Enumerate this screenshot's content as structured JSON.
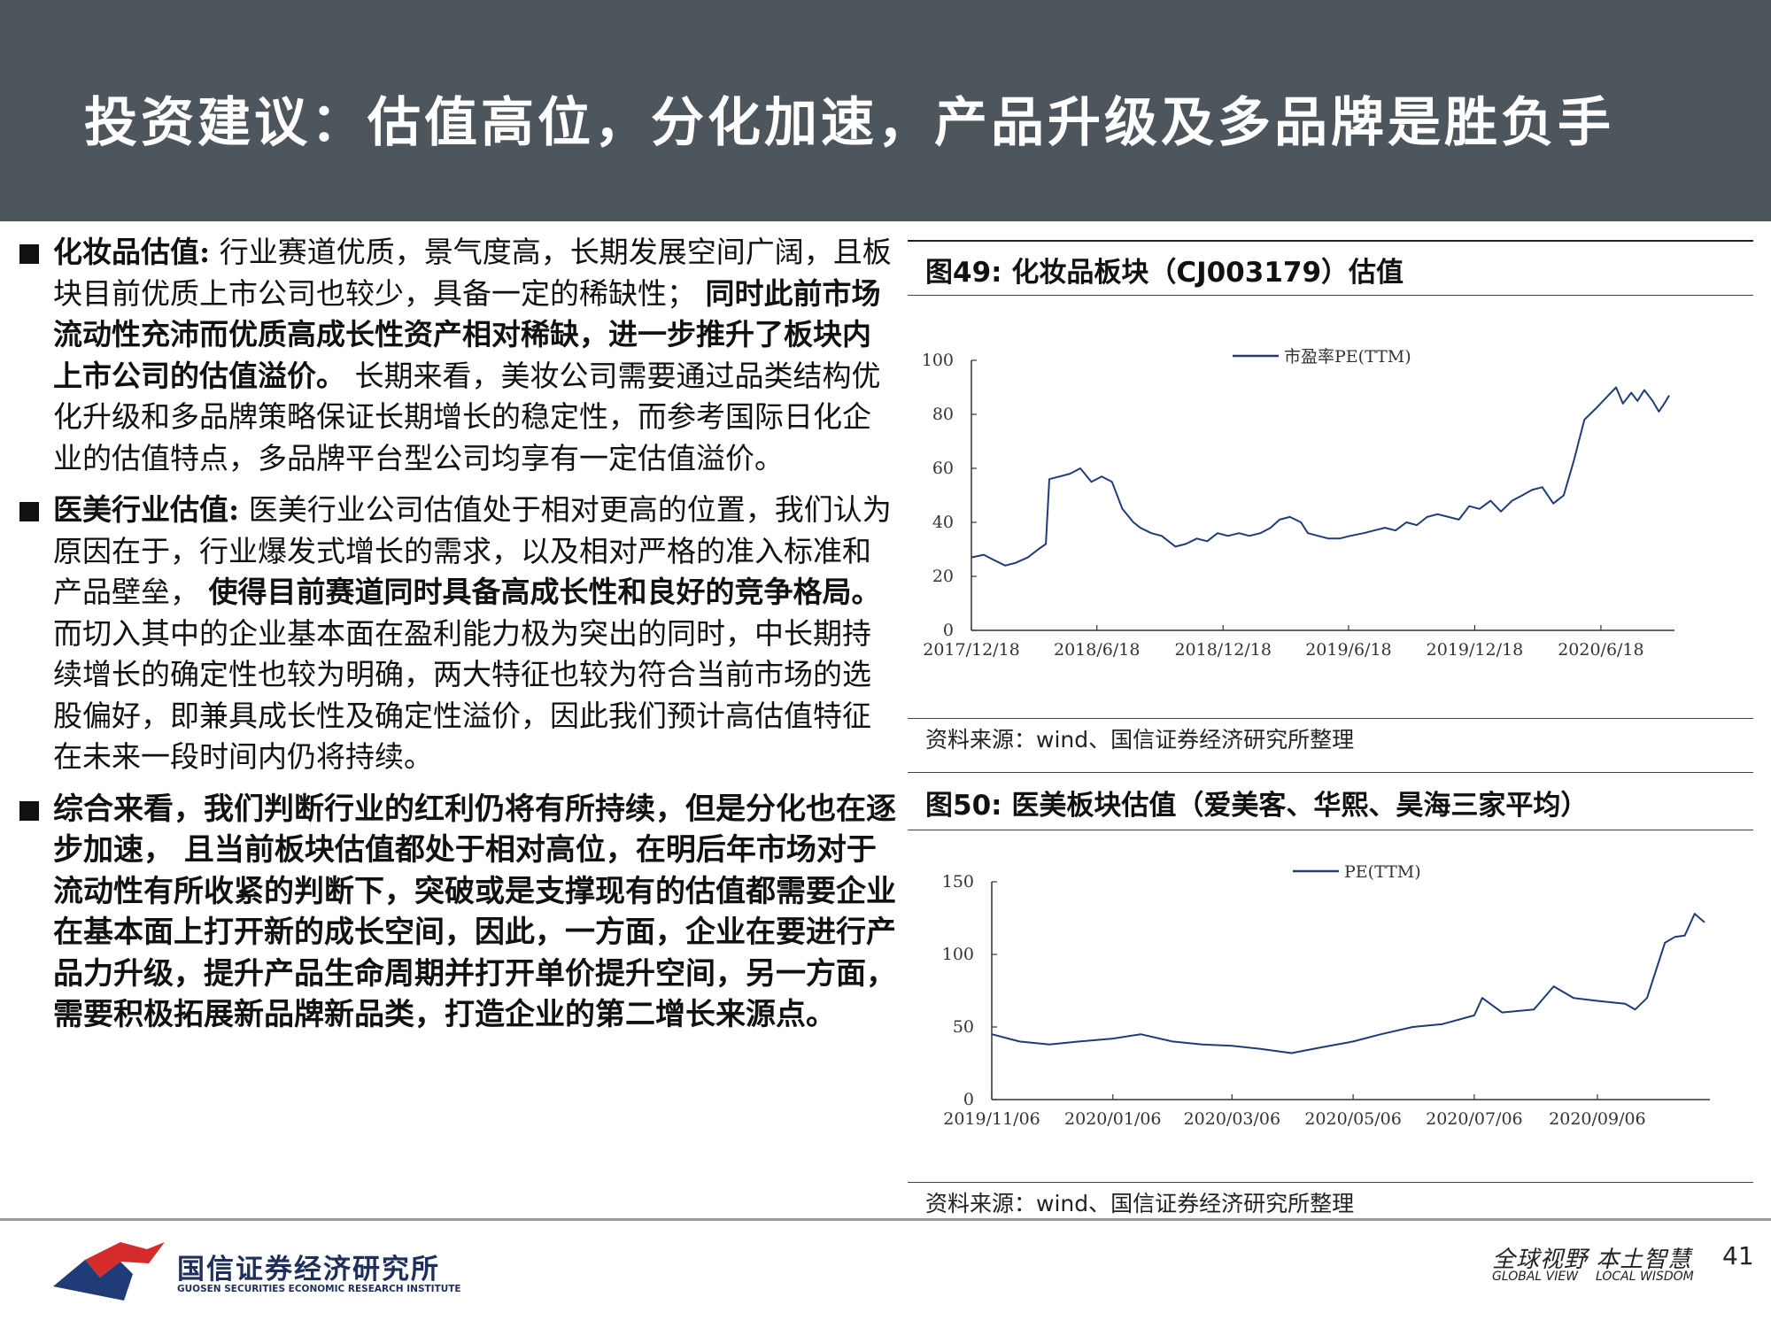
{
  "header": {
    "title": "投资建议：估值高位，分化加速，产品升级及多品牌是胜负手"
  },
  "paragraphs": [
    {
      "head": "化妆品估值:",
      "t1": "行业赛道优质，景气度高，长期发展空间广阔，且板块目前优质上市公司也较少，具备一定的稀缺性；",
      "b1": "同时此前市场流动性充沛而优质高成长性资产相对稀缺，进一步推升了板块内上市公司的估值溢价。",
      "t2": "长期来看，美妆公司需要通过品类结构优化升级和多品牌策略保证长期增长的稳定性，而参考国际日化企业的估值特点，多品牌平台型公司均享有一定估值溢价。"
    },
    {
      "head": "医美行业估值:",
      "t1": "医美行业公司估值处于相对更高的位置，我们认为原因在于，行业爆发式增长的需求，以及相对严格的准入标准和产品壁垒，",
      "b1": "使得目前赛道同时具备高成长性和良好的竞争格局。",
      "t2": "而切入其中的企业基本面在盈利能力极为突出的同时，中长期持续增长的确定性也较为明确，两大特征也较为符合当前市场的选股偏好，即兼具成长性及确定性溢价，因此我们预计高估值特征在未来一段时间内仍将持续。"
    },
    {
      "text": "综合来看，我们判断行业的红利仍将有所持续，但是分化也在逐步加速， 且当前板块估值都处于相对高位，在明后年市场对于流动性有所收紧的判断下，突破或是支撑现有的估值都需要企业在基本面上打开新的成长空间，因此，一方面，企业在要进行产品力升级，提升产品生命周期并打开单价提升空间，另一方面，需要积极拓展新品牌新品类，打造企业的第二增长来源点。"
    }
  ],
  "fig49": {
    "title": "图49:  化妆品板块（CJ003179）估值",
    "source_prefix": "资料来源：",
    "source_wind": "wind",
    "source_suffix": "、国信证券经济研究所整理"
  },
  "fig50": {
    "title": "图50:  医美板块估值（爱美客、华熙、昊海三家平均）",
    "source_prefix": "资料来源：",
    "source_wind": "wind",
    "source_suffix": "、国信证券经济研究所整理"
  },
  "chart_data": [
    {
      "type": "line",
      "ylim": [
        0,
        100
      ],
      "yticks": [
        "0",
        "20",
        "40",
        "60",
        "80",
        "100"
      ],
      "xticks": [
        "2017/12/18",
        "2018/6/18",
        "2018/12/18",
        "2019/6/18",
        "2019/12/18",
        "2020/6/18"
      ],
      "legend": "市盈率PE(TTM)",
      "color": "#1f3c78",
      "x": [
        "2017/12/18",
        "2018/1/5",
        "2018/1/20",
        "2018/2/5",
        "2018/2/20",
        "2018/3/10",
        "2018/3/25",
        "2018/4/5",
        "2018/4/10",
        "2018/4/25",
        "2018/5/10",
        "2018/5/25",
        "2018/6/10",
        "2018/6/25",
        "2018/7/10",
        "2018/7/25",
        "2018/8/10",
        "2018/8/20",
        "2018/9/5",
        "2018/9/20",
        "2018/10/10",
        "2018/10/25",
        "2018/11/10",
        "2018/11/25",
        "2018/12/10",
        "2018/12/25",
        "2019/1/10",
        "2019/1/25",
        "2019/2/10",
        "2019/2/25",
        "2019/3/10",
        "2019/3/25",
        "2019/4/10",
        "2019/4/20",
        "2019/5/5",
        "2019/5/20",
        "2019/6/5",
        "2019/6/20",
        "2019/7/10",
        "2019/7/25",
        "2019/8/10",
        "2019/8/25",
        "2019/9/10",
        "2019/9/25",
        "2019/10/10",
        "2019/10/25",
        "2019/11/10",
        "2019/11/25",
        "2019/12/10",
        "2019/12/25",
        "2020/1/10",
        "2020/1/25",
        "2020/2/10",
        "2020/2/25",
        "2020/3/10",
        "2020/3/25",
        "2020/4/10",
        "2020/4/25",
        "2020/5/10",
        "2020/5/25",
        "2020/6/10",
        "2020/6/25",
        "2020/7/10",
        "2020/7/20",
        "2020/8/1",
        "2020/8/10",
        "2020/8/20",
        "2020/9/1",
        "2020/9/10",
        "2020/9/18",
        "2020/9/25"
      ],
      "values": [
        27,
        28,
        26,
        24,
        25,
        27,
        30,
        32,
        56,
        57,
        58,
        60,
        55,
        57,
        55,
        45,
        40,
        38,
        36,
        35,
        31,
        32,
        34,
        33,
        36,
        35,
        36,
        35,
        36,
        38,
        41,
        42,
        40,
        36,
        35,
        34,
        34,
        35,
        36,
        37,
        38,
        37,
        40,
        39,
        42,
        43,
        42,
        41,
        46,
        45,
        48,
        44,
        48,
        50,
        52,
        53,
        47,
        50,
        63,
        78,
        82,
        86,
        90,
        84,
        88,
        85,
        89,
        85,
        81,
        84,
        87
      ]
    },
    {
      "type": "line",
      "ylim": [
        0,
        150
      ],
      "yticks": [
        "0",
        "50",
        "100",
        "150"
      ],
      "xticks": [
        "2019/11/06",
        "2020/01/06",
        "2020/03/06",
        "2020/05/06",
        "2020/07/06",
        "2020/09/06"
      ],
      "legend": "PE(TTM)",
      "color": "#1f3c78",
      "x": [
        "2019/11/06",
        "2019/11/20",
        "2019/12/05",
        "2019/12/20",
        "2020/01/06",
        "2020/01/20",
        "2020/02/05",
        "2020/02/20",
        "2020/03/06",
        "2020/03/20",
        "2020/04/05",
        "2020/04/20",
        "2020/05/06",
        "2020/05/20",
        "2020/06/05",
        "2020/06/20",
        "2020/07/06",
        "2020/07/10",
        "2020/07/20",
        "2020/08/05",
        "2020/08/15",
        "2020/08/25",
        "2020/09/06",
        "2020/09/20",
        "2020/09/25",
        "2020/10/01",
        "2020/10/10",
        "2020/10/15",
        "2020/10/20",
        "2020/10/25",
        "2020/10/30"
      ],
      "values": [
        45,
        40,
        38,
        40,
        42,
        45,
        40,
        38,
        37,
        35,
        32,
        36,
        40,
        45,
        50,
        52,
        58,
        70,
        60,
        62,
        78,
        70,
        68,
        66,
        62,
        70,
        108,
        112,
        113,
        128,
        122
      ]
    }
  ],
  "footer": {
    "logo_cn": "国信证券经济研究所",
    "logo_en": "GUOSEN SECURITIES ECONOMIC RESEARCH INSTITUTE",
    "slogan_cn": "全球视野 本土智慧",
    "slogan_en1": "GLOBAL VIEW",
    "slogan_en2": "LOCAL WISDOM",
    "page": "41",
    "logo_red": "#d62b2b",
    "logo_blue": "#1f3c78"
  }
}
